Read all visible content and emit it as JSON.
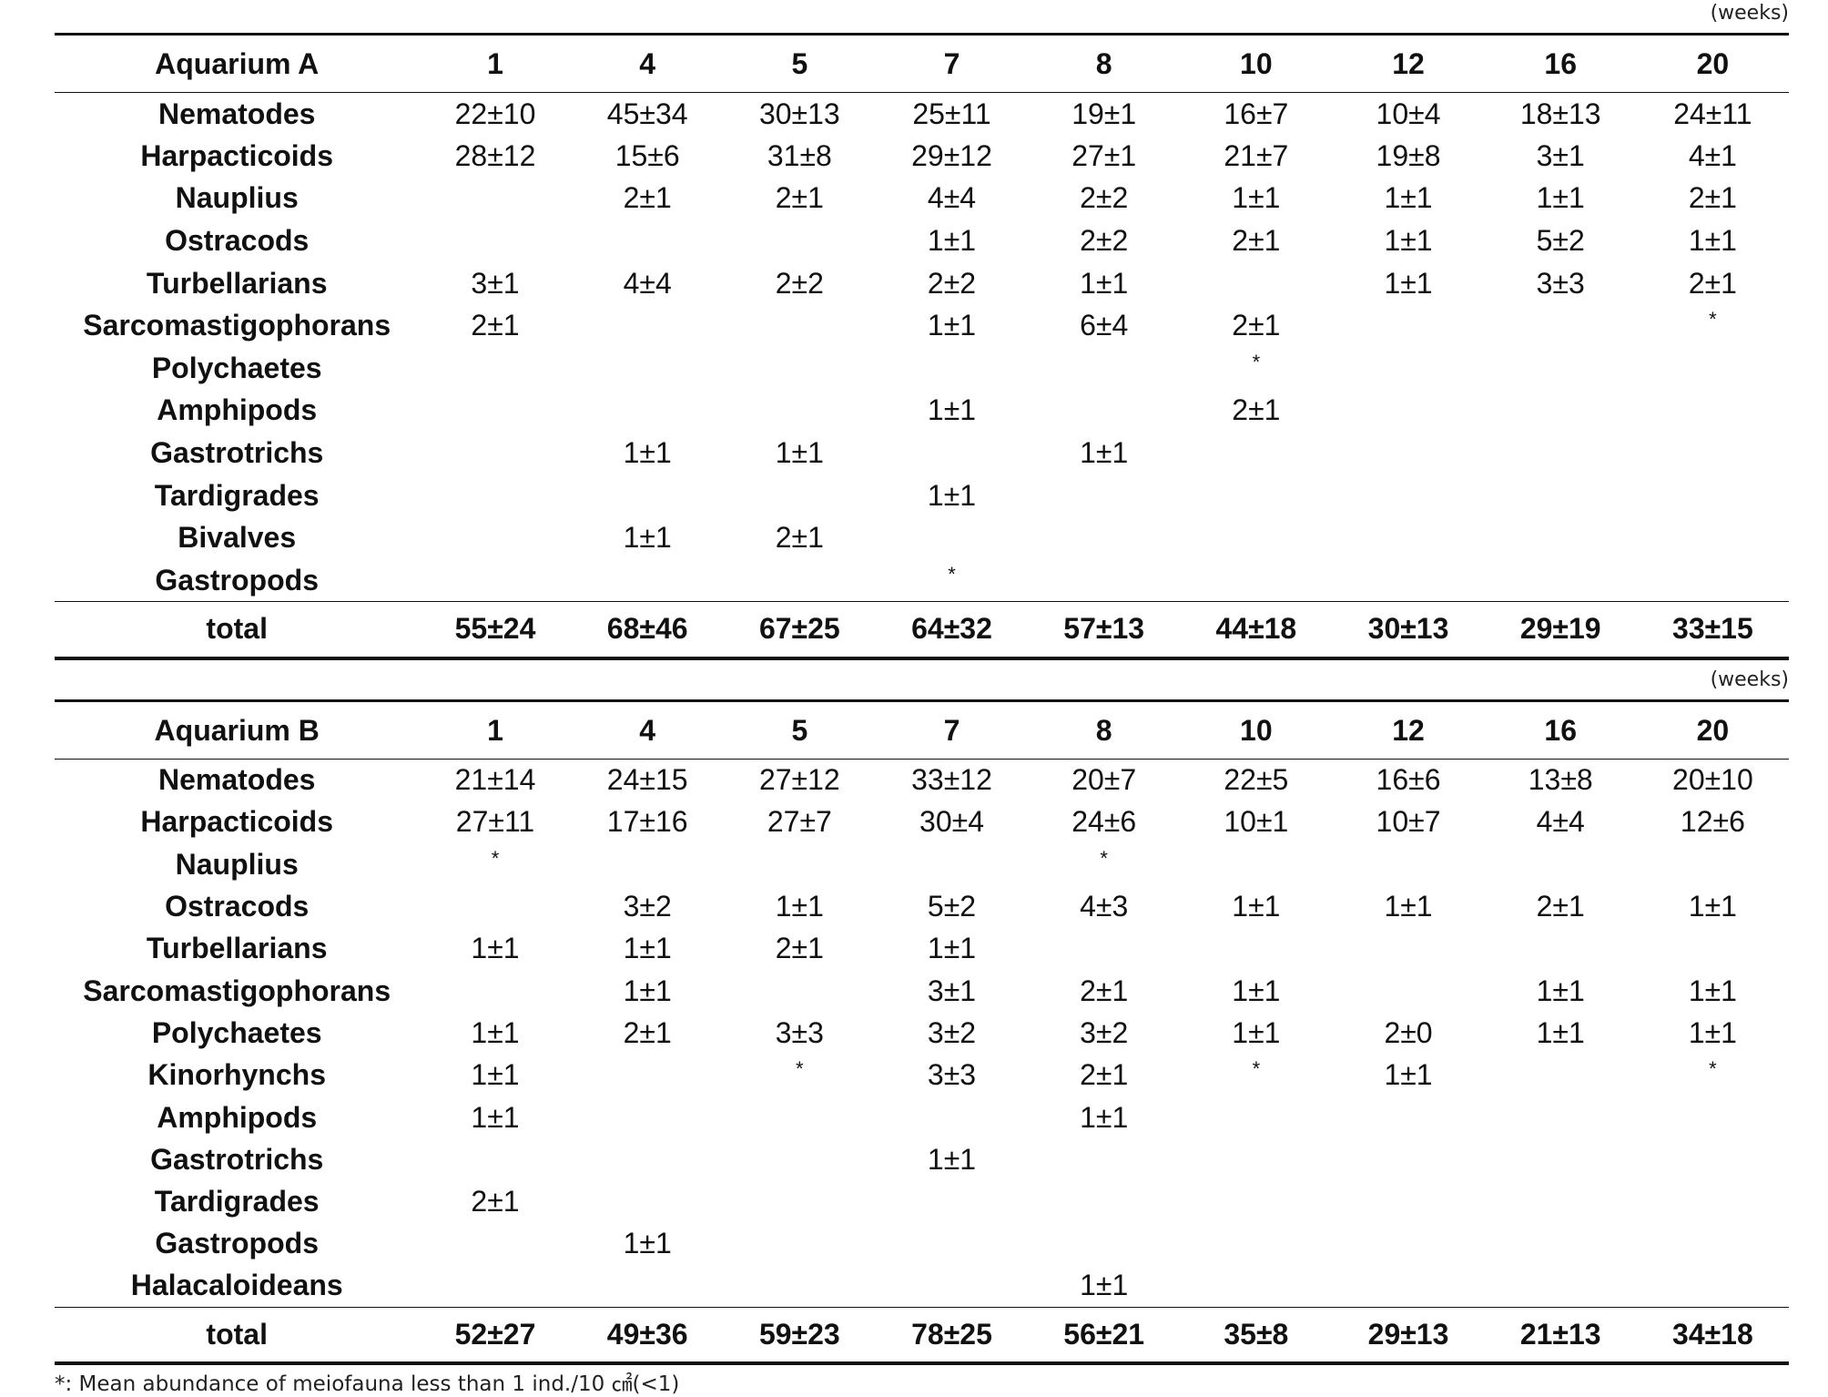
{
  "unit_label": "(weeks)",
  "weeks": [
    "1",
    "4",
    "5",
    "7",
    "8",
    "10",
    "12",
    "16",
    "20"
  ],
  "tables": [
    {
      "title": "Aquarium A",
      "rows": [
        {
          "taxon": "Nematodes",
          "values": [
            "22±10",
            "45±34",
            "30±13",
            "25±11",
            "19±1",
            "16±7",
            "10±4",
            "18±13",
            "24±11"
          ]
        },
        {
          "taxon": "Harpacticoids",
          "values": [
            "28±12",
            "15±6",
            "31±8",
            "29±12",
            "27±1",
            "21±7",
            "19±8",
            "3±1",
            "4±1"
          ]
        },
        {
          "taxon": "Nauplius",
          "values": [
            "",
            "2±1",
            "2±1",
            "4±4",
            "2±2",
            "1±1",
            "1±1",
            "1±1",
            "2±1"
          ]
        },
        {
          "taxon": "Ostracods",
          "values": [
            "",
            "",
            "",
            "1±1",
            "2±2",
            "2±1",
            "1±1",
            "5±2",
            "1±1"
          ]
        },
        {
          "taxon": "Turbellarians",
          "values": [
            "3±1",
            "4±4",
            "2±2",
            "2±2",
            "1±1",
            "",
            "1±1",
            "3±3",
            "2±1"
          ]
        },
        {
          "taxon": "Sarcomastigophorans",
          "values": [
            "2±1",
            "",
            "",
            "1±1",
            "6±4",
            "2±1",
            "",
            "",
            "*"
          ]
        },
        {
          "taxon": "Polychaetes",
          "values": [
            "",
            "",
            "",
            "",
            "",
            "*",
            "",
            "",
            ""
          ]
        },
        {
          "taxon": "Amphipods",
          "values": [
            "",
            "",
            "",
            "1±1",
            "",
            "2±1",
            "",
            "",
            ""
          ]
        },
        {
          "taxon": "Gastrotrichs",
          "values": [
            "",
            "1±1",
            "1±1",
            "",
            "1±1",
            "",
            "",
            "",
            ""
          ]
        },
        {
          "taxon": "Tardigrades",
          "values": [
            "",
            "",
            "",
            "1±1",
            "",
            "",
            "",
            "",
            ""
          ]
        },
        {
          "taxon": "Bivalves",
          "values": [
            "",
            "1±1",
            "2±1",
            "",
            "",
            "",
            "",
            "",
            ""
          ]
        },
        {
          "taxon": "Gastropods",
          "values": [
            "",
            "",
            "",
            "*",
            "",
            "",
            "",
            "",
            ""
          ]
        }
      ],
      "total": {
        "label": "total",
        "values": [
          "55±24",
          "68±46",
          "67±25",
          "64±32",
          "57±13",
          "44±18",
          "30±13",
          "29±19",
          "33±15"
        ]
      }
    },
    {
      "title": "Aquarium B",
      "rows": [
        {
          "taxon": "Nematodes",
          "values": [
            "21±14",
            "24±15",
            "27±12",
            "33±12",
            "20±7",
            "22±5",
            "16±6",
            "13±8",
            "20±10"
          ]
        },
        {
          "taxon": "Harpacticoids",
          "values": [
            "27±11",
            "17±16",
            "27±7",
            "30±4",
            "24±6",
            "10±1",
            "10±7",
            "4±4",
            "12±6"
          ]
        },
        {
          "taxon": "Nauplius",
          "values": [
            "*",
            "",
            "",
            "",
            "*",
            "",
            "",
            "",
            ""
          ]
        },
        {
          "taxon": "Ostracods",
          "values": [
            "",
            "3±2",
            "1±1",
            "5±2",
            "4±3",
            "1±1",
            "1±1",
            "2±1",
            "1±1"
          ]
        },
        {
          "taxon": "Turbellarians",
          "values": [
            "1±1",
            "1±1",
            "2±1",
            "1±1",
            "",
            "",
            "",
            "",
            ""
          ]
        },
        {
          "taxon": "Sarcomastigophorans",
          "values": [
            "",
            "1±1",
            "",
            "3±1",
            "2±1",
            "1±1",
            "",
            "1±1",
            "1±1"
          ]
        },
        {
          "taxon": "Polychaetes",
          "values": [
            "1±1",
            "2±1",
            "3±3",
            "3±2",
            "3±2",
            "1±1",
            "2±0",
            "1±1",
            "1±1"
          ]
        },
        {
          "taxon": "Kinorhynchs",
          "values": [
            "1±1",
            "",
            "*",
            "3±3",
            "2±1",
            "*",
            "1±1",
            "",
            "*"
          ]
        },
        {
          "taxon": "Amphipods",
          "values": [
            "1±1",
            "",
            "",
            "",
            "1±1",
            "",
            "",
            "",
            ""
          ]
        },
        {
          "taxon": "Gastrotrichs",
          "values": [
            "",
            "",
            "",
            "1±1",
            "",
            "",
            "",
            "",
            ""
          ]
        },
        {
          "taxon": "Tardigrades",
          "values": [
            "2±1",
            "",
            "",
            "",
            "",
            "",
            "",
            "",
            ""
          ]
        },
        {
          "taxon": "Gastropods",
          "values": [
            "",
            "1±1",
            "",
            "",
            "",
            "",
            "",
            "",
            ""
          ]
        },
        {
          "taxon": "Halacaloideans",
          "values": [
            "",
            "",
            "",
            "",
            "1±1",
            "",
            "",
            "",
            ""
          ]
        }
      ],
      "total": {
        "label": "total",
        "values": [
          "52±27",
          "49±36",
          "59±23",
          "78±25",
          "56±21",
          "35±8",
          "29±13",
          "21±13",
          "34±18"
        ]
      }
    }
  ],
  "footnote": "*: Mean abundance of meiofauna less than 1 ind./10 ㎠(<1)"
}
